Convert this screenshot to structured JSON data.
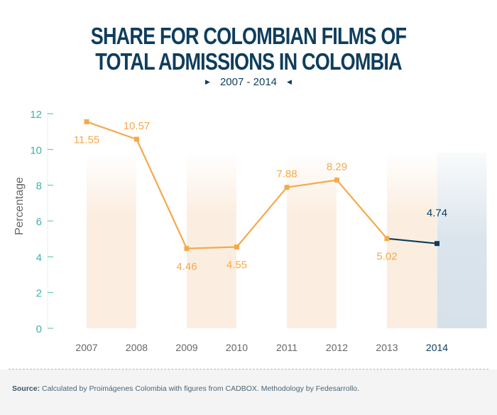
{
  "header": {
    "title_line1": "SHARE FOR COLOMBIAN FILMS OF",
    "title_line2": "TOTAL ADMISSIONS IN COLOMBIA",
    "period": "2007 - 2014",
    "arrow_left": "▶",
    "arrow_right": "◀"
  },
  "footer": {
    "source_label": "Source:",
    "source_text": " Calculated by Proimágenes Colombia with figures from CADBOX. Methodology by Fedesarrollo."
  },
  "colors": {
    "title": "#0f3d5c",
    "series_main": "#f5a94a",
    "series_highlight": "#0f3d5c",
    "band_light": "#fbeee0",
    "band_highlight": "#d6e1ea",
    "axis_tick": "#4fbfb0",
    "label_orange": "#f5a94a"
  },
  "chart_data": {
    "type": "line",
    "title": "SHARE FOR COLOMBIAN FILMS OF TOTAL ADMISSIONS IN COLOMBIA",
    "subtitle": "2007 - 2014",
    "xlabel": "",
    "ylabel": "Percentage",
    "categories": [
      "2007",
      "2008",
      "2009",
      "2010",
      "2011",
      "2012",
      "2013",
      "2014"
    ],
    "values": [
      11.55,
      10.57,
      4.46,
      4.55,
      7.88,
      8.29,
      5.02,
      4.74
    ],
    "data_labels": [
      "11.55",
      "10.57",
      "4.46",
      "4.55",
      "7.88",
      "8.29",
      "5.02",
      "4.74"
    ],
    "highlight_category": "2014",
    "ylim": [
      0,
      12
    ],
    "yticks": [
      "0",
      "2",
      "4",
      "6",
      "8",
      "10",
      "12"
    ],
    "grid": false,
    "legend": "none"
  }
}
